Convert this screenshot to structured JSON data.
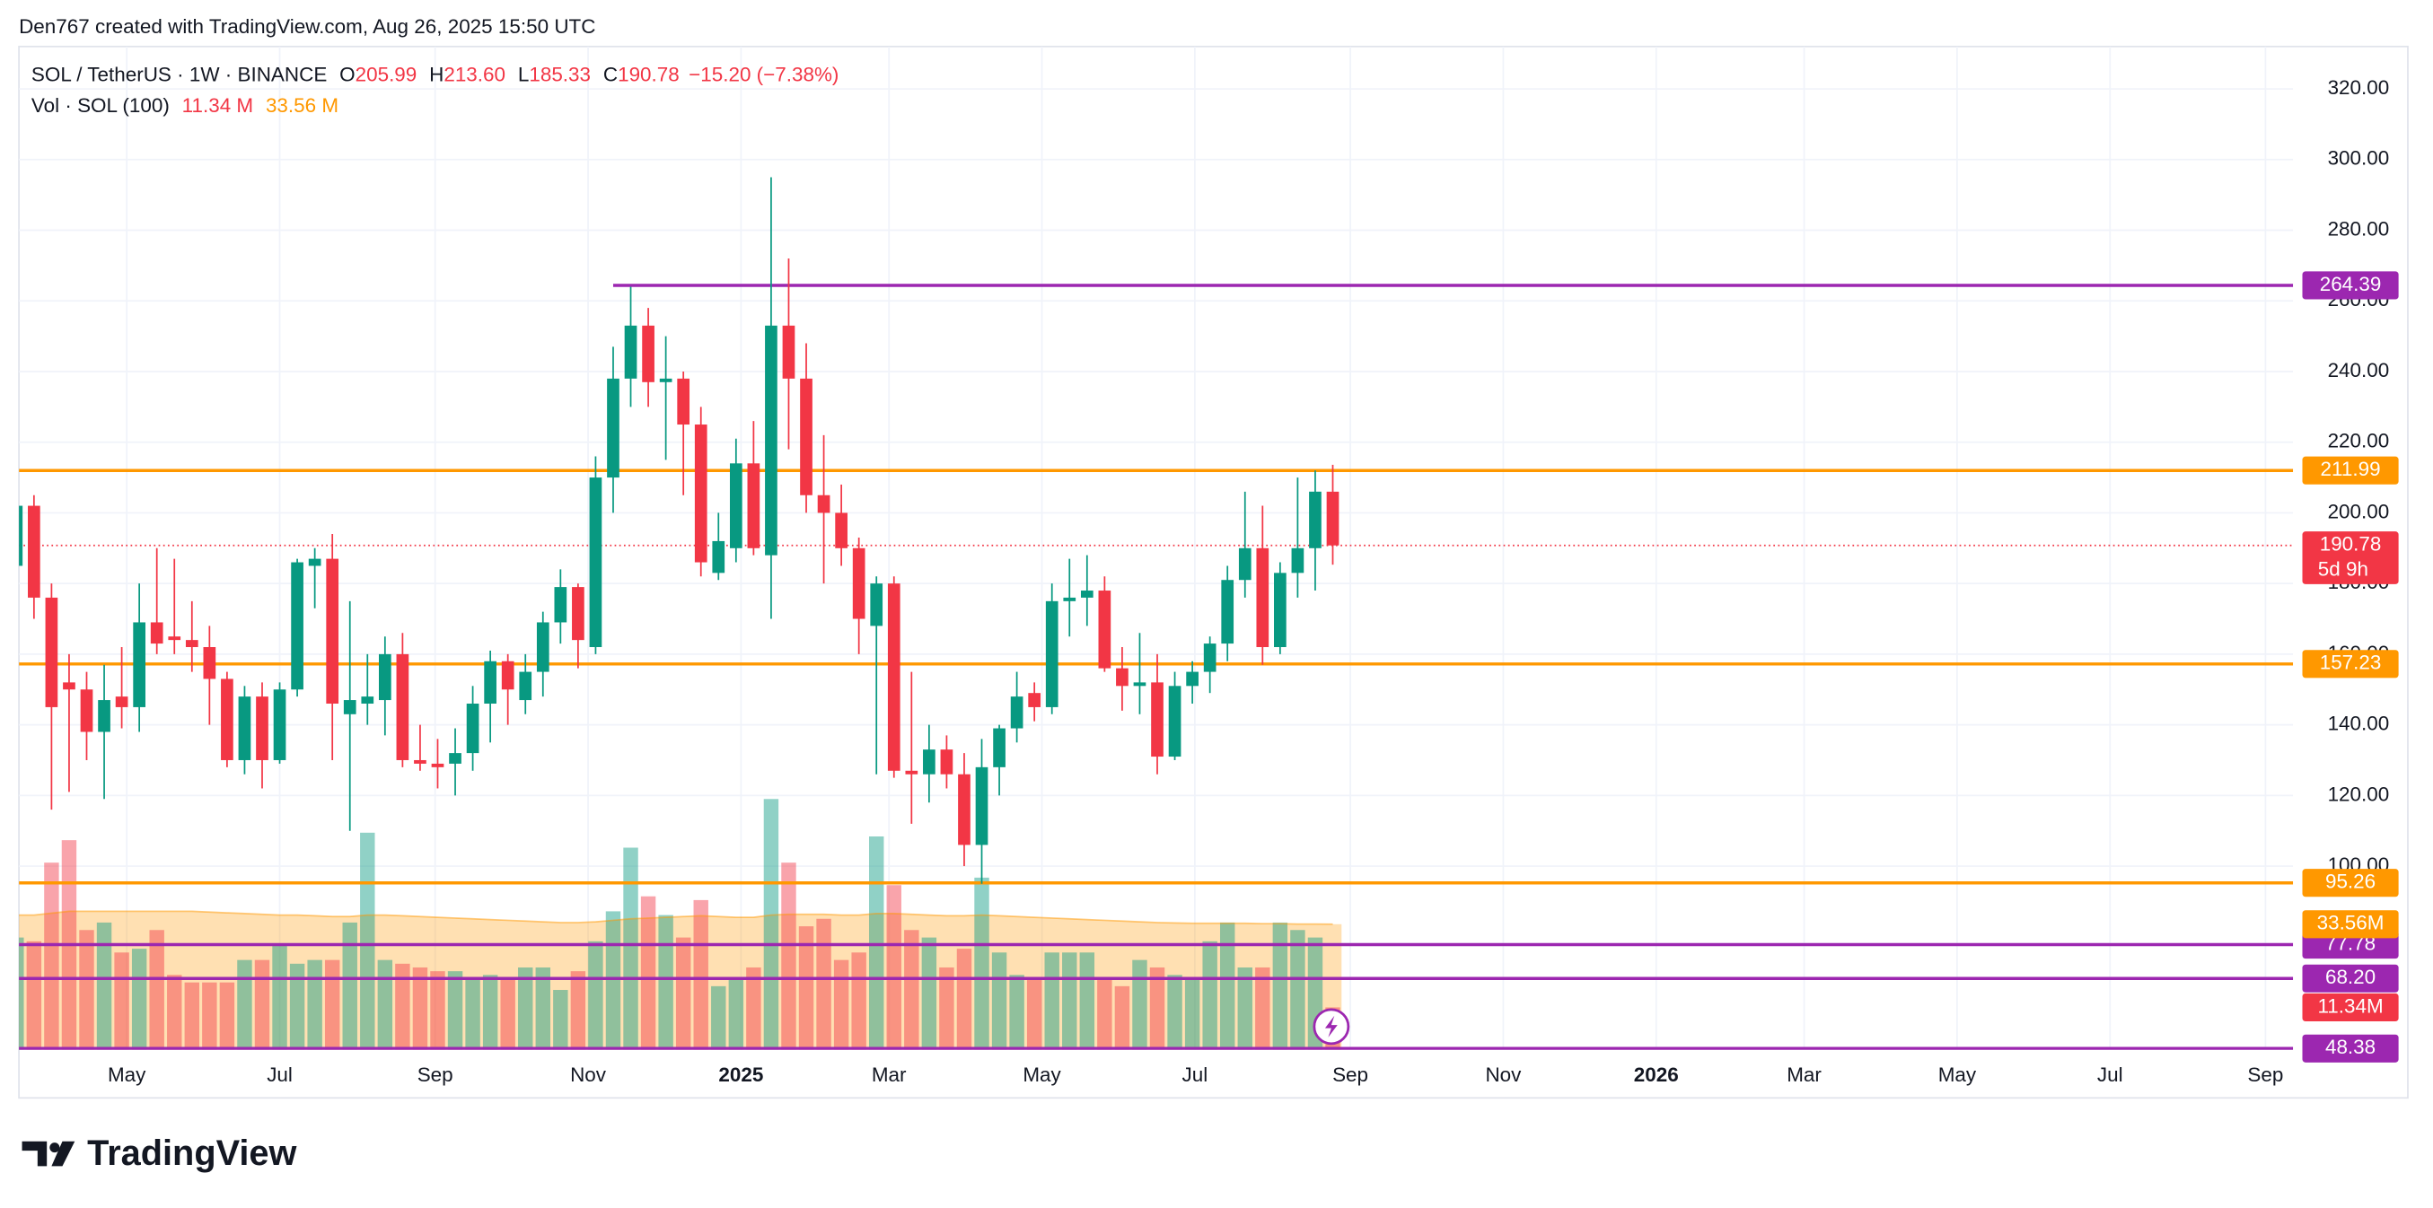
{
  "header": {
    "credit": "Den767 created with TradingView.com, Aug 26, 2025 15:50 UTC"
  },
  "footer": {
    "brand": "TradingView"
  },
  "chart_data": {
    "type": "candlestick",
    "legend": {
      "symbol": "SOL / TetherUS · 1W · BINANCE",
      "items": [
        {
          "key": "O",
          "value": "205.99"
        },
        {
          "key": "H",
          "value": "213.60"
        },
        {
          "key": "L",
          "value": "185.33"
        },
        {
          "key": "C",
          "value": "190.78"
        }
      ],
      "change": "−15.20 (−7.38%)",
      "volume_title": "Vol · SOL (100)",
      "volume_value": "11.34 M",
      "volume_ma": "33.56 M"
    },
    "up_color": "#089981",
    "down_color": "#f23645",
    "x": [
      "2024-03-18",
      "2024-03-25",
      "2024-04-01",
      "2024-04-08",
      "2024-04-15",
      "2024-04-22",
      "2024-04-29",
      "2024-05-06",
      "2024-05-13",
      "2024-05-20",
      "2024-05-27",
      "2024-06-03",
      "2024-06-10",
      "2024-06-17",
      "2024-06-24",
      "2024-07-01",
      "2024-07-08",
      "2024-07-15",
      "2024-07-22",
      "2024-07-29",
      "2024-08-05",
      "2024-08-12",
      "2024-08-19",
      "2024-08-26",
      "2024-09-02",
      "2024-09-09",
      "2024-09-16",
      "2024-09-23",
      "2024-09-30",
      "2024-10-07",
      "2024-10-14",
      "2024-10-21",
      "2024-10-28",
      "2024-11-04",
      "2024-11-11",
      "2024-11-18",
      "2024-11-25",
      "2024-12-02",
      "2024-12-09",
      "2024-12-16",
      "2024-12-23",
      "2024-12-30",
      "2025-01-06",
      "2025-01-13",
      "2025-01-20",
      "2025-01-27",
      "2025-02-03",
      "2025-02-10",
      "2025-02-17",
      "2025-02-24",
      "2025-03-03",
      "2025-03-10",
      "2025-03-17",
      "2025-03-24",
      "2025-03-31",
      "2025-04-07",
      "2025-04-14",
      "2025-04-21",
      "2025-04-28",
      "2025-05-05",
      "2025-05-12",
      "2025-05-19",
      "2025-05-26",
      "2025-06-02",
      "2025-06-09",
      "2025-06-16",
      "2025-06-23",
      "2025-06-30",
      "2025-07-07",
      "2025-07-14",
      "2025-07-21",
      "2025-07-28",
      "2025-08-04",
      "2025-08-11",
      "2025-08-18",
      "2025-08-25"
    ],
    "open": [
      185,
      202,
      176,
      152,
      150,
      138,
      148,
      145,
      169,
      165,
      164,
      162,
      153,
      130,
      148,
      130,
      150,
      185,
      187,
      143,
      146,
      147,
      160,
      130,
      129,
      129,
      132,
      146,
      158,
      147,
      155,
      169,
      179,
      162,
      210,
      238,
      253,
      237,
      238,
      225,
      183,
      190,
      214,
      188,
      253,
      238,
      205,
      200,
      190,
      168,
      180,
      127,
      126,
      133,
      126,
      106,
      128,
      139,
      149,
      145,
      175,
      176,
      178,
      156,
      151,
      152,
      131,
      151,
      155,
      163,
      181,
      190,
      162,
      183,
      190,
      205.99
    ],
    "high": [
      204,
      205,
      180,
      160,
      155,
      157,
      162,
      180,
      190,
      187,
      175,
      168,
      155,
      151,
      152,
      152,
      187,
      190,
      194,
      175,
      160,
      165,
      166,
      140,
      136,
      139,
      151,
      161,
      160,
      160,
      172,
      184,
      180,
      216,
      247,
      264,
      258,
      250,
      240,
      230,
      200,
      221,
      226,
      295,
      272,
      248,
      222,
      208,
      193,
      182,
      182,
      155,
      140,
      137,
      132,
      136,
      140,
      155,
      152,
      180,
      187,
      188,
      182,
      162,
      166,
      160,
      155,
      158,
      165,
      185,
      206,
      202,
      186,
      210,
      212,
      213.6
    ],
    "low": [
      168,
      170,
      116,
      121,
      130,
      119,
      139,
      138,
      160,
      160,
      155,
      140,
      128,
      126,
      122,
      129,
      148,
      173,
      130,
      110,
      140,
      137,
      128,
      127,
      122,
      120,
      127,
      135,
      140,
      143,
      148,
      163,
      156,
      160,
      200,
      230,
      230,
      215,
      205,
      182,
      181,
      186,
      188,
      170,
      218,
      200,
      180,
      185,
      160,
      126,
      125,
      112,
      118,
      122,
      100,
      95,
      120,
      135,
      141,
      143,
      165,
      168,
      155,
      144,
      143,
      126,
      130,
      146,
      149,
      158,
      176,
      157,
      160,
      176,
      178,
      185.33
    ],
    "close": [
      202,
      176,
      145,
      150,
      138,
      147,
      145,
      169,
      163,
      164,
      162,
      153,
      130,
      148,
      130,
      150,
      186,
      187,
      146,
      147,
      148,
      160,
      130,
      129,
      128,
      132,
      146,
      158,
      150,
      155,
      169,
      179,
      164,
      210,
      238,
      253,
      237,
      238,
      225,
      186,
      192,
      214,
      190,
      253,
      238,
      205,
      200,
      190,
      170,
      180,
      127,
      126,
      133,
      126,
      106,
      128,
      139,
      148,
      145,
      175,
      176,
      178,
      156,
      151,
      152,
      131,
      151,
      155,
      163,
      181,
      190,
      162,
      183,
      190,
      206,
      190.78
    ],
    "volume": {
      "name": "Vol · SOL (100)",
      "axis": "y2",
      "values": [
        30,
        29,
        50,
        56,
        32,
        34,
        26,
        27,
        32,
        20,
        18,
        18,
        18,
        24,
        24,
        28,
        23,
        24,
        24,
        34,
        58,
        24,
        23,
        22,
        21,
        21,
        19,
        20,
        19,
        22,
        22,
        16,
        21,
        29,
        37,
        54,
        41,
        36,
        30,
        40,
        17,
        19,
        22,
        67,
        50,
        33,
        35,
        24,
        26,
        57,
        44,
        32,
        30,
        22,
        27,
        46,
        26,
        20,
        19,
        26,
        26,
        26,
        19,
        17,
        24,
        22,
        20,
        19,
        29,
        34,
        22,
        22,
        34,
        32,
        30,
        11.34
      ],
      "ma": [
        36,
        36,
        36.5,
        37,
        37,
        37,
        37,
        37,
        37,
        37,
        37,
        36.8,
        36.6,
        36.4,
        36.2,
        36,
        36,
        35.8,
        35.6,
        35.6,
        36,
        36,
        35.8,
        35.6,
        35.4,
        35.2,
        35,
        34.8,
        34.6,
        34.4,
        34.2,
        34,
        34,
        34.2,
        34.6,
        35,
        35.2,
        35.4,
        35.6,
        35.8,
        35.6,
        35.4,
        35.4,
        36,
        36.2,
        36.2,
        36.2,
        36,
        36,
        36.4,
        36.4,
        36.2,
        36,
        35.8,
        35.8,
        36,
        35.8,
        35.6,
        35.4,
        35.2,
        35,
        34.8,
        34.6,
        34.4,
        34.2,
        34,
        33.9,
        33.8,
        33.8,
        33.8,
        33.8,
        33.7,
        33.7,
        33.6,
        33.6,
        33.56
      ],
      "ma_color": "#ff9800"
    },
    "xlim": [
      "2024-03-19",
      "2026-09-12"
    ],
    "xticks": [
      {
        "value": "2024-05-01",
        "label": "May"
      },
      {
        "value": "2024-07-01",
        "label": "Jul"
      },
      {
        "value": "2024-09-01",
        "label": "Sep"
      },
      {
        "value": "2024-11-01",
        "label": "Nov"
      },
      {
        "value": "2025-01-01",
        "label": "2025"
      },
      {
        "value": "2025-03-01",
        "label": "Mar"
      },
      {
        "value": "2025-05-01",
        "label": "May"
      },
      {
        "value": "2025-07-01",
        "label": "Jul"
      },
      {
        "value": "2025-09-01",
        "label": "Sep"
      },
      {
        "value": "2025-11-01",
        "label": "Nov"
      },
      {
        "value": "2026-01-01",
        "label": "2026"
      },
      {
        "value": "2026-03-01",
        "label": "Mar"
      },
      {
        "value": "2026-05-01",
        "label": "May"
      },
      {
        "value": "2026-07-01",
        "label": "Jul"
      },
      {
        "value": "2026-09-01",
        "label": "Sep"
      }
    ],
    "ylim": [
      48,
      332
    ],
    "yticks": [
      {
        "value": 100,
        "label": "100.00"
      },
      {
        "value": 120,
        "label": "120.00"
      },
      {
        "value": 140,
        "label": "140.00"
      },
      {
        "value": 160,
        "label": "160.00"
      },
      {
        "value": 180,
        "label": "180.00"
      },
      {
        "value": 200,
        "label": "200.00"
      },
      {
        "value": 220,
        "label": "220.00"
      },
      {
        "value": 240,
        "label": "240.00"
      },
      {
        "value": 260,
        "label": "260.00"
      },
      {
        "value": 280,
        "label": "280.00"
      },
      {
        "value": 300,
        "label": "300.00"
      },
      {
        "value": 320,
        "label": "320.00"
      }
    ],
    "y2lim": [
      0,
      268
    ],
    "grid": true,
    "levels": [
      {
        "value": 264.39,
        "label": "264.39",
        "color": "#9c27b0",
        "start": "2024-11-11"
      },
      {
        "value": 211.99,
        "label": "211.99",
        "color": "#ff9800"
      },
      {
        "value": 157.23,
        "label": "157.23",
        "color": "#ff9800"
      },
      {
        "value": 95.26,
        "label": "95.26",
        "color": "#ff9800"
      },
      {
        "value": 77.78,
        "label": "77.78",
        "color": "#9c27b0"
      },
      {
        "value": 68.2,
        "label": "68.20",
        "color": "#9c27b0"
      },
      {
        "value": 48.38,
        "label": "48.38",
        "color": "#9c27b0"
      }
    ],
    "last_price": {
      "value": 190.78,
      "label": "190.78",
      "countdown": "5d 9h",
      "color": "#f23645"
    },
    "volume_labels": [
      {
        "value": 33.56,
        "label": "33.56M",
        "color": "#ff9800"
      },
      {
        "value": 11.34,
        "label": "11.34M",
        "color": "#f23645"
      }
    ]
  }
}
